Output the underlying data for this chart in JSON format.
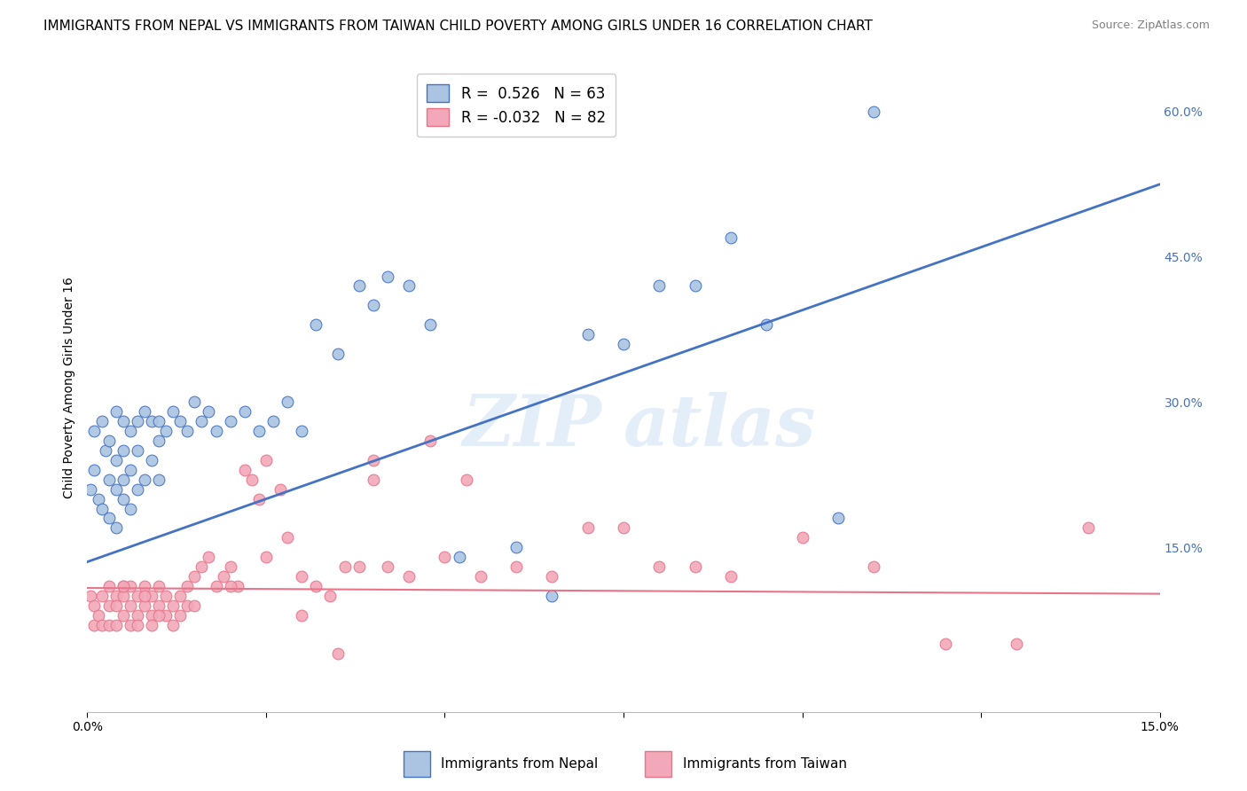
{
  "title": "IMMIGRANTS FROM NEPAL VS IMMIGRANTS FROM TAIWAN CHILD POVERTY AMONG GIRLS UNDER 16 CORRELATION CHART",
  "source": "Source: ZipAtlas.com",
  "ylabel": "Child Poverty Among Girls Under 16",
  "xlabel_nepal": "Immigrants from Nepal",
  "xlabel_taiwan": "Immigrants from Taiwan",
  "xlim": [
    0.0,
    0.15
  ],
  "ylim": [
    -0.02,
    0.65
  ],
  "y_ticks_right": [
    0.15,
    0.3,
    0.45,
    0.6
  ],
  "y_tick_labels_right": [
    "15.0%",
    "30.0%",
    "45.0%",
    "60.0%"
  ],
  "nepal_R": 0.526,
  "nepal_N": 63,
  "taiwan_R": -0.032,
  "taiwan_N": 82,
  "nepal_color": "#aac4e2",
  "taiwan_color": "#f2a8b8",
  "nepal_line_color": "#4472c4",
  "taiwan_line_color": "#e8748a",
  "background_color": "#ffffff",
  "grid_color": "#cccccc",
  "nepal_scatter_x": [
    0.0005,
    0.001,
    0.001,
    0.0015,
    0.002,
    0.002,
    0.0025,
    0.003,
    0.003,
    0.003,
    0.004,
    0.004,
    0.004,
    0.004,
    0.005,
    0.005,
    0.005,
    0.005,
    0.006,
    0.006,
    0.006,
    0.007,
    0.007,
    0.007,
    0.008,
    0.008,
    0.009,
    0.009,
    0.01,
    0.01,
    0.01,
    0.011,
    0.012,
    0.013,
    0.014,
    0.015,
    0.016,
    0.017,
    0.018,
    0.02,
    0.022,
    0.024,
    0.026,
    0.028,
    0.03,
    0.032,
    0.035,
    0.038,
    0.04,
    0.042,
    0.045,
    0.048,
    0.052,
    0.06,
    0.065,
    0.07,
    0.075,
    0.08,
    0.085,
    0.09,
    0.095,
    0.105,
    0.11
  ],
  "nepal_scatter_y": [
    0.21,
    0.27,
    0.23,
    0.2,
    0.28,
    0.19,
    0.25,
    0.22,
    0.18,
    0.26,
    0.29,
    0.21,
    0.24,
    0.17,
    0.28,
    0.22,
    0.2,
    0.25,
    0.27,
    0.23,
    0.19,
    0.28,
    0.21,
    0.25,
    0.29,
    0.22,
    0.28,
    0.24,
    0.28,
    0.22,
    0.26,
    0.27,
    0.29,
    0.28,
    0.27,
    0.3,
    0.28,
    0.29,
    0.27,
    0.28,
    0.29,
    0.27,
    0.28,
    0.3,
    0.27,
    0.38,
    0.35,
    0.42,
    0.4,
    0.43,
    0.42,
    0.38,
    0.14,
    0.15,
    0.1,
    0.37,
    0.36,
    0.42,
    0.42,
    0.47,
    0.38,
    0.18,
    0.6
  ],
  "taiwan_scatter_x": [
    0.0005,
    0.001,
    0.001,
    0.0015,
    0.002,
    0.002,
    0.003,
    0.003,
    0.003,
    0.004,
    0.004,
    0.004,
    0.005,
    0.005,
    0.005,
    0.006,
    0.006,
    0.006,
    0.007,
    0.007,
    0.007,
    0.008,
    0.008,
    0.009,
    0.009,
    0.009,
    0.01,
    0.01,
    0.011,
    0.011,
    0.012,
    0.012,
    0.013,
    0.013,
    0.014,
    0.014,
    0.015,
    0.016,
    0.017,
    0.018,
    0.019,
    0.02,
    0.021,
    0.022,
    0.023,
    0.024,
    0.025,
    0.027,
    0.028,
    0.03,
    0.032,
    0.034,
    0.036,
    0.038,
    0.04,
    0.042,
    0.045,
    0.048,
    0.05,
    0.053,
    0.055,
    0.06,
    0.065,
    0.07,
    0.075,
    0.08,
    0.085,
    0.09,
    0.1,
    0.11,
    0.12,
    0.13,
    0.14,
    0.005,
    0.008,
    0.01,
    0.015,
    0.02,
    0.025,
    0.03,
    0.035,
    0.04
  ],
  "taiwan_scatter_y": [
    0.1,
    0.09,
    0.07,
    0.08,
    0.1,
    0.07,
    0.09,
    0.11,
    0.07,
    0.1,
    0.09,
    0.07,
    0.11,
    0.08,
    0.1,
    0.07,
    0.09,
    0.11,
    0.08,
    0.1,
    0.07,
    0.09,
    0.11,
    0.08,
    0.1,
    0.07,
    0.09,
    0.11,
    0.08,
    0.1,
    0.09,
    0.07,
    0.1,
    0.08,
    0.11,
    0.09,
    0.12,
    0.13,
    0.14,
    0.11,
    0.12,
    0.13,
    0.11,
    0.23,
    0.22,
    0.2,
    0.24,
    0.21,
    0.16,
    0.12,
    0.11,
    0.1,
    0.13,
    0.13,
    0.24,
    0.13,
    0.12,
    0.26,
    0.14,
    0.22,
    0.12,
    0.13,
    0.12,
    0.17,
    0.17,
    0.13,
    0.13,
    0.12,
    0.16,
    0.13,
    0.05,
    0.05,
    0.17,
    0.11,
    0.1,
    0.08,
    0.09,
    0.11,
    0.14,
    0.08,
    0.04,
    0.22
  ],
  "nepal_line_x": [
    0.0,
    0.15
  ],
  "nepal_line_y": [
    0.135,
    0.525
  ],
  "taiwan_line_x": [
    0.0,
    0.15
  ],
  "taiwan_line_y": [
    0.108,
    0.102
  ],
  "watermark_line1": "ZIP",
  "watermark_line2": "atlas",
  "title_fontsize": 11,
  "label_fontsize": 10,
  "tick_fontsize": 10,
  "legend_fontsize": 12
}
